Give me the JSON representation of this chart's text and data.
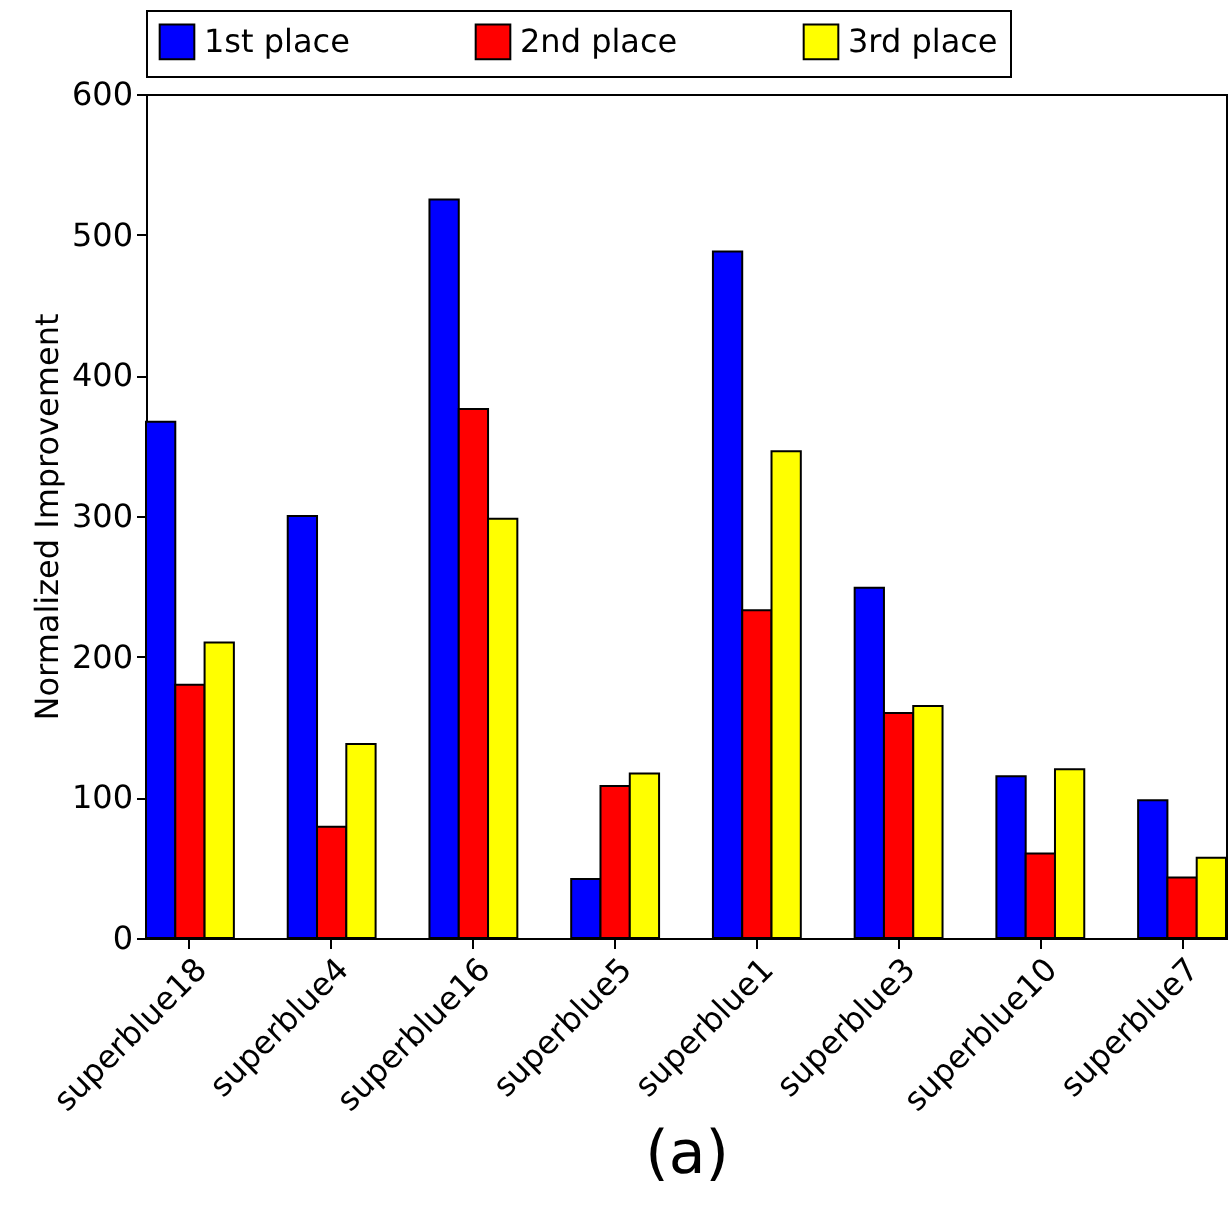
{
  "chart_data": {
    "type": "bar",
    "xlabel": "(a)",
    "ylabel": "Normalized Improvement",
    "categories": [
      "superblue18",
      "superblue4",
      "superblue16",
      "superblue5",
      "superblue1",
      "superblue3",
      "superblue10",
      "superblue7"
    ],
    "series": [
      {
        "name": "1st place",
        "color": "#0000ff",
        "values": [
          367,
          300,
          525,
          42,
          488,
          249,
          115,
          98
        ]
      },
      {
        "name": "2nd place",
        "color": "#ff0000",
        "values": [
          180,
          79,
          376,
          108,
          233,
          160,
          60,
          43
        ]
      },
      {
        "name": "3rd place",
        "color": "#ffff00",
        "values": [
          210,
          138,
          298,
          117,
          346,
          165,
          120,
          57
        ]
      }
    ],
    "ylim": [
      0,
      600
    ],
    "yticks": [
      0,
      100,
      200,
      300,
      400,
      500,
      600
    ],
    "grid": false,
    "legend": "top"
  }
}
